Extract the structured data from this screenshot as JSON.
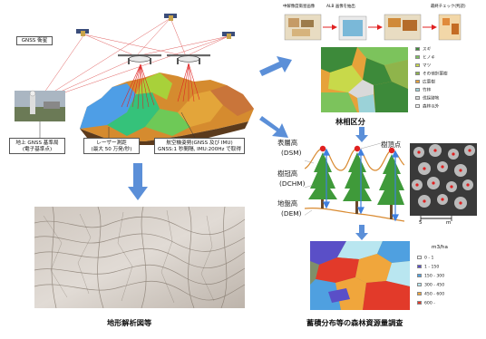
{
  "gnss_satellite": {
    "label": "GNSS 衛星"
  },
  "ground_station": {
    "label_line1": "地上 GNSS 基準局",
    "label_line2": "(電子基準点)"
  },
  "laser": {
    "label_line1": "レーザー測距",
    "label_line2": "(最大 50 万発/秒)"
  },
  "aircraft_attitude": {
    "label_line1": "航空機姿勢(GNSS 及び IMU)",
    "label_line2": "GNSS:1 秒間隔, IMU:200Hz で取得"
  },
  "terrain_analysis": {
    "caption": "地形解析図等"
  },
  "forest_type": {
    "caption": "林相区分",
    "flow_left": "中解像度衛星画像",
    "flow_mid": "ALB 画像を抽出",
    "flow_right": "最終チェック(判読)",
    "legend": [
      {
        "label": "スギ",
        "color": "#3d8a3a"
      },
      {
        "label": "ヒノキ",
        "color": "#7cc35c"
      },
      {
        "label": "マツ",
        "color": "#c8d94a"
      },
      {
        "label": "その他針葉樹",
        "color": "#8fb44b"
      },
      {
        "label": "広葉樹",
        "color": "#e7a23a"
      },
      {
        "label": "竹林",
        "color": "#9bd2d8"
      },
      {
        "label": "伐採跡地",
        "color": "#d9d9d9"
      },
      {
        "label": "森林以外",
        "color": "#f4f4f4"
      }
    ]
  },
  "canopy": {
    "dsm_label": "表層高",
    "dsm_abbr": "(DSM)",
    "dchm_label": "樹冠高",
    "dchm_abbr": "(DCHM)",
    "dem_label": "地盤高",
    "dem_abbr": "(DEM)",
    "tree_top_label": "樹頂点",
    "scale_label_left": "5",
    "scale_label_right": "m"
  },
  "volume": {
    "caption": "蓄積分布等の森林資源量調査",
    "unit": "m3/ha",
    "legend": [
      {
        "label": "0 - 1",
        "color": "#ffffff"
      },
      {
        "label": "1 - 150",
        "color": "#5a4fc7"
      },
      {
        "label": "150 - 300",
        "color": "#4fa0e0"
      },
      {
        "label": "300 - 450",
        "color": "#b9e6f0"
      },
      {
        "label": "450 - 600",
        "color": "#f0a63c"
      },
      {
        "label": "600 -",
        "color": "#e23a2a"
      }
    ]
  }
}
